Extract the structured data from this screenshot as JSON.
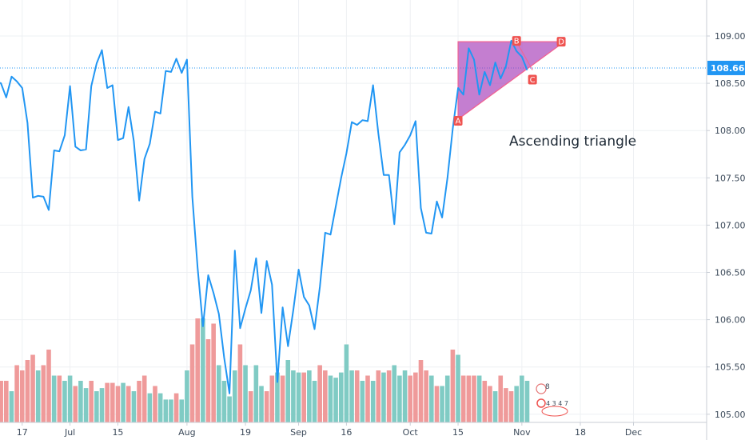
{
  "chart_data": {
    "type": "line",
    "title": "",
    "xlabel": "",
    "ylabel": "",
    "ylim": [
      104.96,
      109.4
    ],
    "y_ticks": [
      "105.000",
      "105.500",
      "106.000",
      "106.500",
      "107.000",
      "107.500",
      "108.000",
      "108.500",
      "109.000"
    ],
    "x_ticks": [
      "17",
      "Jul",
      "15",
      "Aug",
      "19",
      "Sep",
      "16",
      "Oct",
      "15",
      "Nov",
      "18",
      "Dec"
    ],
    "x_tick_index": [
      5,
      14,
      23,
      36,
      47,
      57,
      66,
      78,
      87,
      99,
      110,
      120
    ],
    "n_slots": 130,
    "last_price": "108.662",
    "last_price_value": 108.662,
    "series": [
      {
        "values": [
          108.52,
          108.5,
          108.35,
          108.57,
          108.52,
          108.45,
          108.08,
          107.29,
          107.31,
          107.3,
          107.16,
          107.79,
          107.78,
          107.95,
          108.47,
          107.83,
          107.79,
          107.8,
          108.47,
          108.71,
          108.85,
          108.45,
          108.48,
          107.9,
          107.92,
          108.25,
          107.89,
          107.26,
          107.7,
          107.86,
          108.2,
          108.18,
          108.63,
          108.62,
          108.76,
          108.61,
          108.75,
          107.3,
          106.55,
          105.93,
          106.47,
          106.28,
          106.06,
          105.6,
          105.22,
          106.73,
          105.91,
          106.12,
          106.31,
          106.65,
          106.07,
          106.62,
          106.37,
          105.34,
          106.13,
          105.72,
          106.1,
          106.53,
          106.24,
          106.15,
          105.9,
          106.35,
          106.92,
          106.9,
          107.2,
          107.5,
          107.76,
          108.09,
          108.06,
          108.11,
          108.1,
          108.48,
          107.97,
          107.53,
          107.53,
          107.01,
          107.77,
          107.85,
          107.95,
          108.1,
          107.18,
          106.92,
          106.91,
          107.25,
          107.08,
          107.5,
          108.02,
          108.45,
          108.38,
          108.87,
          108.75,
          108.38,
          108.62,
          108.48,
          108.72,
          108.55,
          108.68,
          108.95,
          108.84,
          108.78,
          108.64
        ]
      }
    ],
    "volume": [
      0.35,
      0.4,
      0.4,
      0.3,
      0.55,
      0.5,
      0.6,
      0.65,
      0.5,
      0.55,
      0.7,
      0.45,
      0.45,
      0.4,
      0.45,
      0.35,
      0.4,
      0.33,
      0.4,
      0.3,
      0.33,
      0.38,
      0.38,
      0.35,
      0.38,
      0.35,
      0.3,
      0.4,
      0.45,
      0.28,
      0.35,
      0.28,
      0.22,
      0.22,
      0.28,
      0.22,
      0.5,
      0.75,
      1.0,
      1.0,
      0.8,
      0.95,
      0.55,
      0.4,
      0.25,
      0.5,
      0.75,
      0.55,
      0.3,
      0.55,
      0.35,
      0.3,
      0.45,
      0.48,
      0.45,
      0.6,
      0.5,
      0.48,
      0.48,
      0.5,
      0.4,
      0.55,
      0.5,
      0.45,
      0.43,
      0.48,
      0.75,
      0.5,
      0.5,
      0.4,
      0.45,
      0.4,
      0.5,
      0.48,
      0.5,
      0.55,
      0.45,
      0.5,
      0.45,
      0.48,
      0.6,
      0.5,
      0.45,
      0.35,
      0.35,
      0.45,
      0.7,
      0.65,
      0.45,
      0.45,
      0.45,
      0.45,
      0.4,
      0.35,
      0.3,
      0.45,
      0.33,
      0.3,
      0.35,
      0.45,
      0.4
    ],
    "volume_colors": [
      "teal",
      "red",
      "red",
      "teal",
      "red",
      "red",
      "red",
      "red",
      "teal",
      "red",
      "red",
      "teal",
      "red",
      "teal",
      "teal",
      "red",
      "teal",
      "teal",
      "red",
      "teal",
      "teal",
      "red",
      "red",
      "red",
      "teal",
      "red",
      "teal",
      "red",
      "red",
      "teal",
      "red",
      "teal",
      "teal",
      "teal",
      "red",
      "teal",
      "teal",
      "red",
      "red",
      "teal",
      "red",
      "red",
      "teal",
      "teal",
      "teal",
      "teal",
      "red",
      "teal",
      "red",
      "teal",
      "teal",
      "red",
      "red",
      "teal",
      "red",
      "teal",
      "teal",
      "teal",
      "red",
      "teal",
      "teal",
      "red",
      "red",
      "teal",
      "teal",
      "teal",
      "teal",
      "teal",
      "red",
      "teal",
      "red",
      "teal",
      "red",
      "teal",
      "red",
      "teal",
      "teal",
      "teal",
      "red",
      "red",
      "red",
      "red",
      "teal",
      "red",
      "teal",
      "teal",
      "red",
      "teal",
      "red",
      "red",
      "red",
      "teal",
      "red",
      "red",
      "teal",
      "red",
      "red",
      "red",
      "teal",
      "teal",
      "teal"
    ],
    "pattern": {
      "label": "Ascending triangle",
      "points": [
        {
          "name": "A",
          "index": 87,
          "value": 108.12
        },
        {
          "name": "B",
          "index": 98,
          "value": 108.94
        },
        {
          "name": "C",
          "index": 101,
          "value": 108.64
        },
        {
          "name": "D",
          "index": 107,
          "value": 108.94
        }
      ],
      "fill_color": "#ab47bc",
      "border_color": "#f06292",
      "marker_color": "#ef5350"
    },
    "colors": {
      "line": "#2196f3",
      "volume_up": "#80cbc4",
      "volume_down": "#ef9a9a",
      "last_price_bg": "#2196f3",
      "grid": "#eef0f3"
    },
    "grid": true,
    "event_badges": [
      "8",
      "4 3 4 7"
    ]
  }
}
